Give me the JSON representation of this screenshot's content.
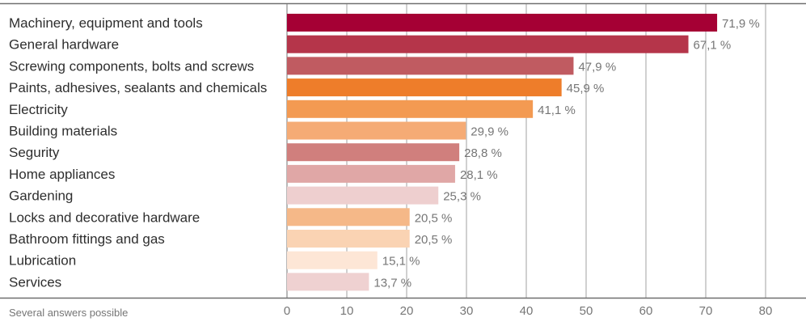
{
  "note": "Several answers possible",
  "chart_data": {
    "type": "bar",
    "orientation": "horizontal",
    "title": "",
    "xlabel": "",
    "ylabel": "",
    "categories": [
      "Machinery, equipment and tools",
      "General hardware",
      "Screwing components, bolts and screws",
      "Paints, adhesives, sealants and chemicals",
      "Electricity",
      "Building materials",
      "Segurity",
      "Home appliances",
      "Gardening",
      "Locks and decorative hardware",
      "Bathroom fittings and gas",
      "Lubrication",
      "Services"
    ],
    "values": [
      71.9,
      67.1,
      47.9,
      45.9,
      41.1,
      29.9,
      28.8,
      28.1,
      25.3,
      20.5,
      20.5,
      15.1,
      13.7
    ],
    "value_labels": [
      "71,9 %",
      "67,1 %",
      "47,9 %",
      "45,9 %",
      "41,1 %",
      "29,9 %",
      "28,8 %",
      "28,1 %",
      "25,3 %",
      "20,5 %",
      "20,5 %",
      "15,1 %",
      "13,7 %"
    ],
    "bar_colors": [
      "#a50034",
      "#b5354a",
      "#c05b61",
      "#ee7d2a",
      "#f39a52",
      "#f5ab75",
      "#d07f7d",
      "#e0a7a6",
      "#eecfcf",
      "#f5b888",
      "#fad3b3",
      "#fde6d6",
      "#efd1d1"
    ],
    "xlim": [
      0,
      80
    ],
    "xticks": [
      0,
      10,
      20,
      30,
      40,
      50,
      60,
      70,
      80
    ],
    "grid": "vertical",
    "legend": "none"
  },
  "colors": {
    "text": "#2e2e2e",
    "muted": "#767676",
    "grid": "#8a8a8a",
    "axis": "#6f6f6f"
  }
}
